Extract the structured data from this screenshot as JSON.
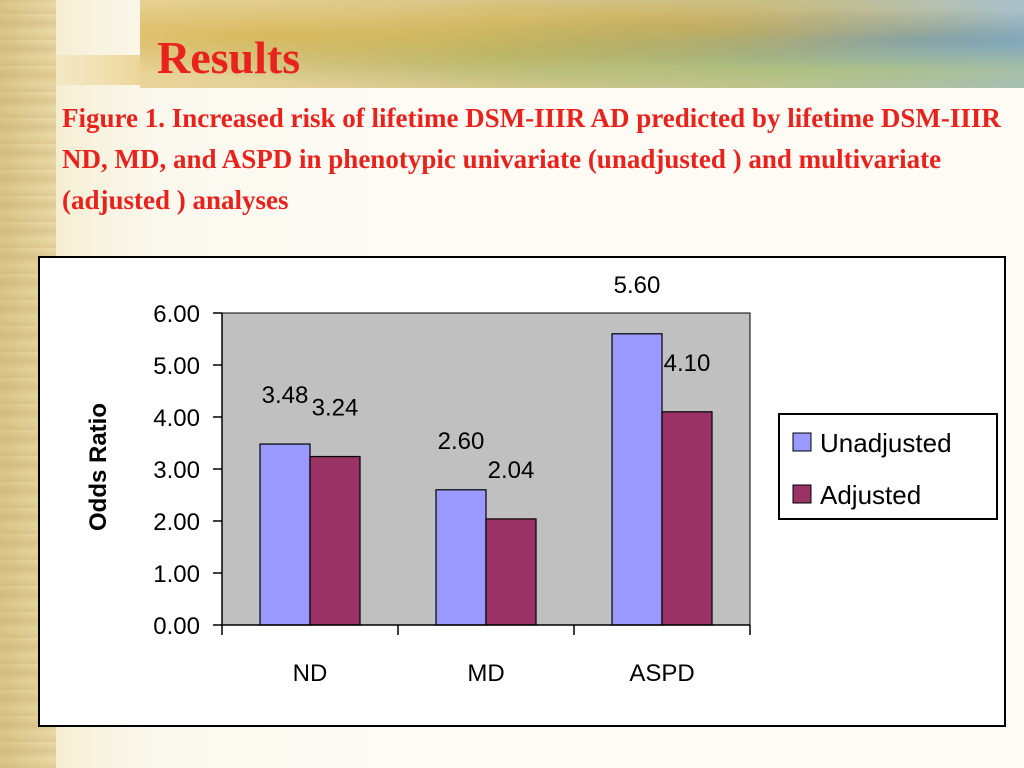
{
  "slide": {
    "title": "Results",
    "caption": "Figure 1. Increased risk of lifetime DSM-IIIR AD predicted by lifetime DSM-IIIR ND, MD, and ASPD in phenotypic univariate (unadjusted ) and multivariate (adjusted ) analyses"
  },
  "chart_data": {
    "type": "bar",
    "categories": [
      "ND",
      "MD",
      "ASPD"
    ],
    "series": [
      {
        "name": "Unadjusted",
        "values": [
          3.48,
          2.6,
          5.6
        ],
        "labels": [
          "3.48",
          "2.60",
          "5.60"
        ],
        "color": "#9999ff"
      },
      {
        "name": "Adjusted",
        "values": [
          3.24,
          2.04,
          4.1
        ],
        "labels": [
          "3.24",
          "2.04",
          "4.10"
        ],
        "color": "#993366"
      }
    ],
    "ylabel": "Odds Ratio",
    "xlabel": "",
    "ylim": [
      0,
      6
    ],
    "yticks": [
      "0.00",
      "1.00",
      "2.00",
      "3.00",
      "4.00",
      "5.00",
      "6.00"
    ],
    "plot_background": "#c0c0c0",
    "grid": false,
    "legend_position": "right"
  }
}
